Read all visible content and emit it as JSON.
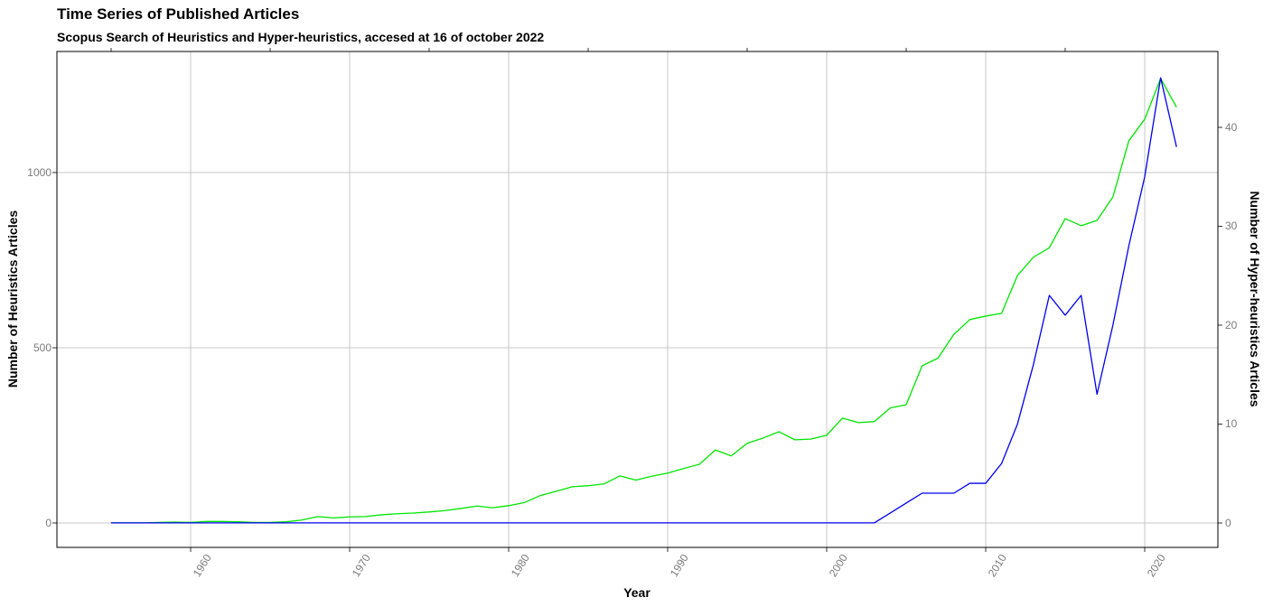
{
  "header": {
    "title": "Time Series of Published Articles",
    "subtitle": "Scopus Search of Heuristics and Hyper-heuristics, accesed at 16 of october 2022"
  },
  "axes": {
    "x_label": "Year",
    "y_left_label": "Number of Heuristics Articles",
    "y_right_label": "Number of Hyper-heuristics Articles"
  },
  "colors": {
    "heuristics_line": "#00E500",
    "hyper_heuristics_line": "#0000EE",
    "gridline": "#C7C7C7",
    "tick_mark": "#333333",
    "tick_text": "#7b7b7b",
    "panel_border": "#000000",
    "background": "#ffffff"
  },
  "chart_data": {
    "type": "line",
    "title": "Time Series of Published Articles",
    "subtitle": "Scopus Search of Heuristics and Hyper-heuristics, accesed at 16 of october 2022",
    "xlabel": "Year",
    "ylabel_left": "Number of Heuristics Articles",
    "ylabel_right": "Number of Hyper-heuristics Articles",
    "grid": "major",
    "legend": "none",
    "xlim": [
      1951.6,
      2024.6
    ],
    "ylim_left": [
      -70,
      1345
    ],
    "ylim_right": [
      -2.48,
      47.66
    ],
    "x_ticks": [
      1960,
      1970,
      1980,
      1990,
      2000,
      2010,
      2020
    ],
    "x_top_ticks": [
      1955,
      1965,
      1975,
      1985,
      1995,
      2005,
      2015
    ],
    "y_left_ticks": [
      0,
      500,
      1000
    ],
    "y_right_ticks": [
      0,
      10,
      20,
      30,
      40
    ],
    "x": [
      1955,
      1956,
      1957,
      1958,
      1959,
      1960,
      1961,
      1962,
      1963,
      1964,
      1965,
      1966,
      1967,
      1968,
      1969,
      1970,
      1971,
      1972,
      1973,
      1974,
      1975,
      1976,
      1977,
      1978,
      1979,
      1980,
      1981,
      1982,
      1983,
      1984,
      1985,
      1986,
      1987,
      1988,
      1989,
      1990,
      1991,
      1992,
      1993,
      1994,
      1995,
      1996,
      1997,
      1998,
      1999,
      2000,
      2001,
      2002,
      2003,
      2004,
      2005,
      2006,
      2007,
      2008,
      2009,
      2010,
      2011,
      2012,
      2013,
      2014,
      2015,
      2016,
      2017,
      2018,
      2019,
      2020,
      2021,
      2022
    ],
    "series": [
      {
        "name": "Heuristics",
        "axis": "left",
        "color": "#00E500",
        "values": [
          0,
          0,
          0,
          1,
          2,
          1,
          4,
          4,
          3,
          1,
          1,
          3,
          8,
          18,
          14,
          17,
          18,
          23,
          26,
          28,
          31,
          35,
          41,
          48,
          43,
          49,
          58,
          78,
          90,
          103,
          106,
          111,
          134,
          122,
          133,
          142,
          155,
          167,
          208,
          191,
          227,
          242,
          260,
          237,
          239,
          250,
          299,
          286,
          289,
          328,
          337,
          448,
          470,
          538,
          580,
          590,
          598,
          706,
          758,
          785,
          868,
          848,
          863,
          930,
          1090,
          1152,
          1268,
          1186
        ]
      },
      {
        "name": "Hyper-heuristics",
        "axis": "right",
        "color": "#0000EE",
        "values": [
          0,
          0,
          0,
          0,
          0,
          0,
          0,
          0,
          0,
          0,
          0,
          0,
          0,
          0,
          0,
          0,
          0,
          0,
          0,
          0,
          0,
          0,
          0,
          0,
          0,
          0,
          0,
          0,
          0,
          0,
          0,
          0,
          0,
          0,
          0,
          0,
          0,
          0,
          0,
          0,
          0,
          0,
          0,
          0,
          0,
          0,
          0,
          0,
          0,
          1,
          2,
          3,
          3,
          3,
          4,
          4,
          6,
          10,
          16,
          23,
          21,
          23,
          13,
          20,
          28,
          35,
          45,
          38
        ]
      }
    ]
  }
}
